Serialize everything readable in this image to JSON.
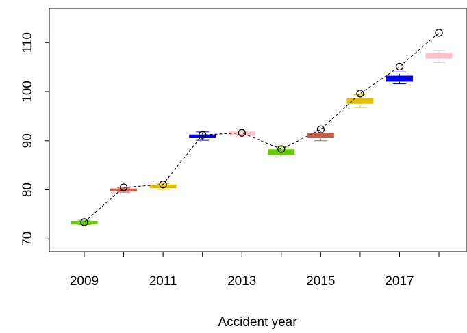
{
  "chart_data": {
    "type": "box",
    "x_label": "Accident year",
    "categories": [
      "2009",
      null,
      "2011",
      null,
      "2013",
      null,
      "2015",
      null,
      "2017",
      null
    ],
    "boxes": [
      {
        "min": 72.9,
        "q1": 73.0,
        "median": 73.3,
        "q3": 73.6,
        "max": 73.8
      },
      {
        "min": 79.5,
        "q1": 79.7,
        "median": 80.0,
        "q3": 80.2,
        "max": 80.4
      },
      {
        "min": 80.1,
        "q1": 80.4,
        "median": 80.7,
        "q3": 81.0,
        "max": 81.3
      },
      {
        "min": 90.1,
        "q1": 90.6,
        "median": 90.9,
        "q3": 91.2,
        "max": 91.8
      },
      {
        "min": 90.7,
        "q1": 91.1,
        "median": 91.4,
        "q3": 91.8,
        "max": 92.3
      },
      {
        "min": 86.7,
        "q1": 87.2,
        "median": 87.6,
        "q3": 88.2,
        "max": 88.8
      },
      {
        "min": 90.0,
        "q1": 90.6,
        "median": 91.0,
        "q3": 91.5,
        "max": 92.0
      },
      {
        "min": 96.8,
        "q1": 97.6,
        "median": 98.1,
        "q3": 98.6,
        "max": 99.4
      },
      {
        "min": 101.6,
        "q1": 102.1,
        "median": 102.6,
        "q3": 103.2,
        "max": 104.0
      },
      {
        "min": 105.9,
        "q1": 106.8,
        "median": 107.3,
        "q3": 107.8,
        "max": 108.4
      }
    ],
    "colors": [
      "#66cc00",
      "#cd5b45",
      "#e6c000",
      "#0000ee",
      "#ffc0cb",
      "#66cc00",
      "#cd5b45",
      "#e6c000",
      "#0000ee",
      "#ffc0cb"
    ],
    "points": [
      73.4,
      80.5,
      81.1,
      91.2,
      91.6,
      88.3,
      92.3,
      99.6,
      105.1,
      112.0
    ],
    "ylim": [
      67.4,
      117
    ],
    "yticks": [
      70,
      80,
      90,
      100,
      110
    ]
  }
}
